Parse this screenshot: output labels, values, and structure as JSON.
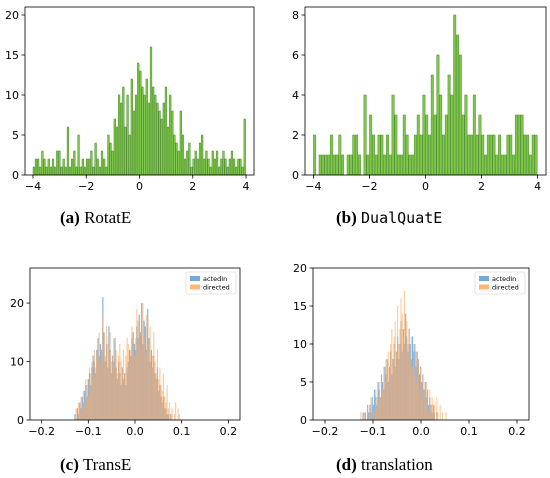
{
  "captions": [
    {
      "label": "(a)",
      "text": "RotatE",
      "mono": false
    },
    {
      "label": "(b)",
      "text": "DualQuatE",
      "mono": true
    },
    {
      "label": "(c)",
      "text": "TransE",
      "mono": false
    },
    {
      "label": "(d)",
      "text": "translation",
      "mono": false
    }
  ],
  "colors": {
    "green": "#7fc64c",
    "green_edge": "#4f8f2e",
    "blue": "#5b9bd5",
    "orange": "#ffa95e"
  },
  "chart_data": [
    {
      "type": "bar",
      "xlim": [
        -4.3,
        4.3
      ],
      "ylim": [
        0,
        21
      ],
      "xticks": [
        -4,
        -2,
        0,
        2,
        4
      ],
      "xtick_labels": [
        "−4",
        "−2",
        "0",
        "2",
        "4"
      ],
      "yticks": [
        0,
        5,
        10,
        15,
        20
      ],
      "ytick_labels": [
        "0",
        "5",
        "10",
        "15",
        "20"
      ],
      "bin_start": -4,
      "bin_width": 0.08,
      "series": [
        {
          "color_key": "green",
          "values": [
            1,
            2,
            2,
            1,
            3,
            2,
            1,
            2,
            1,
            2,
            1,
            3,
            3,
            1,
            2,
            1,
            6,
            1,
            2,
            3,
            1,
            5,
            1,
            2,
            1,
            2,
            2,
            3,
            1,
            4,
            2,
            1,
            3,
            2,
            1,
            5,
            4,
            3,
            7,
            6,
            10,
            9,
            11,
            6,
            10,
            5,
            12,
            8,
            10,
            14,
            13,
            11,
            10,
            12,
            9,
            16,
            11,
            10,
            9,
            8,
            7,
            9,
            11,
            6,
            10,
            8,
            5,
            4,
            3,
            8,
            5,
            2,
            3,
            4,
            1,
            2,
            3,
            2,
            4,
            5,
            2,
            3,
            2,
            1,
            3,
            2,
            3,
            1,
            2,
            3,
            2,
            1,
            2,
            3,
            2,
            1,
            2,
            2,
            1,
            7
          ]
        }
      ]
    },
    {
      "type": "bar",
      "xlim": [
        -4.3,
        4.3
      ],
      "ylim": [
        0,
        8.4
      ],
      "xticks": [
        -4,
        -2,
        0,
        2,
        4
      ],
      "xtick_labels": [
        "−4",
        "−2",
        "0",
        "2",
        "4"
      ],
      "yticks": [
        0,
        2,
        4,
        6,
        8
      ],
      "ytick_labels": [
        "0",
        "2",
        "4",
        "6",
        "8"
      ],
      "bin_start": -4,
      "bin_width": 0.1,
      "series": [
        {
          "color_key": "green",
          "values": [
            2,
            0,
            1,
            1,
            1,
            1,
            2,
            1,
            1,
            2,
            1,
            0,
            1,
            1,
            2,
            2,
            1,
            0,
            4,
            1,
            3,
            2,
            1,
            2,
            2,
            1,
            2,
            1,
            4,
            3,
            1,
            1,
            3,
            2,
            1,
            1,
            2,
            3,
            2,
            4,
            3,
            2,
            5,
            3,
            6,
            4,
            2,
            3,
            5,
            4,
            8,
            7,
            6,
            3,
            4,
            2,
            2,
            4,
            2,
            3,
            2,
            1,
            2,
            2,
            2,
            1,
            2,
            1,
            1,
            2,
            2,
            1,
            3,
            3,
            3,
            2,
            2,
            1,
            2,
            2
          ]
        }
      ]
    },
    {
      "type": "bar",
      "xlim": [
        -0.225,
        0.225
      ],
      "ylim": [
        0,
        26
      ],
      "xticks": [
        -0.2,
        -0.1,
        0.0,
        0.1,
        0.2
      ],
      "xtick_labels": [
        "−0.2",
        "−0.1",
        "0.0",
        "0.1",
        "0.2"
      ],
      "yticks": [
        0,
        10,
        20
      ],
      "ytick_labels": [
        "0",
        "10",
        "20"
      ],
      "bin_start": -0.13,
      "bin_width": 0.0026,
      "legend_position": "top-right",
      "series": [
        {
          "name": "actedIn",
          "color_key": "blue",
          "values": [
            1,
            0,
            2,
            1,
            3,
            2,
            4,
            3,
            5,
            6,
            4,
            7,
            8,
            6,
            9,
            11,
            10,
            8,
            12,
            14,
            11,
            13,
            12,
            21,
            15,
            10,
            13,
            9,
            16,
            12,
            8,
            11,
            10,
            14,
            9,
            7,
            10,
            8,
            6,
            9,
            7,
            8,
            6,
            9,
            10,
            12,
            11,
            14,
            15,
            13,
            12,
            16,
            14,
            18,
            15,
            20,
            13,
            17,
            16,
            12,
            19,
            14,
            10,
            12,
            9,
            11,
            8,
            7,
            9,
            5,
            6,
            4,
            3,
            4,
            2,
            2,
            1,
            1,
            0,
            1,
            0,
            0,
            0,
            0,
            0,
            0,
            0,
            0,
            0,
            0,
            0,
            0,
            0,
            0,
            0,
            0,
            0,
            0,
            0,
            0
          ]
        },
        {
          "name": "directed",
          "color_key": "orange",
          "values": [
            0,
            2,
            0,
            3,
            1,
            4,
            2,
            5,
            3,
            7,
            6,
            4,
            9,
            8,
            10,
            7,
            12,
            9,
            11,
            13,
            15,
            10,
            12,
            18,
            14,
            11,
            16,
            13,
            12,
            15,
            10,
            11,
            14,
            9,
            12,
            8,
            11,
            13,
            10,
            9,
            12,
            8,
            11,
            14,
            13,
            10,
            12,
            16,
            15,
            11,
            14,
            19,
            17,
            13,
            15,
            12,
            20,
            14,
            11,
            18,
            13,
            12,
            16,
            9,
            11,
            15,
            10,
            8,
            12,
            7,
            9,
            6,
            5,
            8,
            4,
            3,
            6,
            2,
            3,
            1,
            2,
            0,
            1,
            3,
            0,
            2,
            1,
            0,
            0,
            0,
            0,
            0,
            0,
            0,
            0,
            0,
            0,
            0,
            0,
            0
          ]
        }
      ]
    },
    {
      "type": "bar",
      "xlim": [
        -0.225,
        0.225
      ],
      "ylim": [
        0,
        20
      ],
      "xticks": [
        -0.2,
        -0.1,
        0.0,
        0.1,
        0.2
      ],
      "xtick_labels": [
        "−0.2",
        "−0.1",
        "0.0",
        "0.1",
        "0.2"
      ],
      "yticks": [
        0,
        5,
        10,
        15,
        20
      ],
      "ytick_labels": [
        "0",
        "5",
        "10",
        "15",
        "20"
      ],
      "bin_start": -0.17,
      "bin_width": 0.0024,
      "legend_position": "top-right",
      "series": [
        {
          "name": "actedIn",
          "color_key": "blue",
          "values": [
            0,
            0,
            0,
            0,
            0,
            0,
            0,
            0,
            0,
            0,
            0,
            0,
            0,
            0,
            0,
            0,
            0,
            0,
            0,
            0,
            1,
            0,
            1,
            0,
            2,
            1,
            2,
            1,
            3,
            2,
            4,
            3,
            2,
            5,
            4,
            3,
            6,
            5,
            4,
            7,
            6,
            8,
            5,
            7,
            9,
            6,
            8,
            10,
            7,
            9,
            11,
            8,
            10,
            13,
            9,
            12,
            10,
            14,
            11,
            9,
            12,
            10,
            8,
            11,
            9,
            10,
            7,
            9,
            8,
            6,
            7,
            5,
            6,
            4,
            5,
            3,
            4,
            2,
            3,
            2,
            1,
            2,
            1,
            0,
            1,
            0,
            0,
            0,
            0,
            0,
            0,
            0,
            0,
            0,
            0,
            0,
            0,
            0,
            0,
            0,
            0,
            0,
            0,
            0,
            0,
            0,
            0,
            0,
            0,
            0,
            0,
            0,
            0,
            0,
            0,
            0,
            0,
            0,
            0,
            0,
            0,
            0,
            0,
            0,
            0,
            0,
            0,
            0,
            0,
            0,
            0,
            0,
            0,
            0,
            0,
            0,
            0,
            0,
            0,
            0,
            0
          ]
        },
        {
          "name": "directed",
          "color_key": "orange",
          "values": [
            0,
            0,
            0,
            0,
            0,
            0,
            0,
            0,
            0,
            0,
            0,
            0,
            0,
            0,
            0,
            0,
            0,
            0,
            1,
            0,
            0,
            1,
            0,
            0,
            2,
            0,
            1,
            3,
            0,
            2,
            1,
            4,
            3,
            2,
            5,
            3,
            6,
            4,
            7,
            5,
            8,
            6,
            9,
            7,
            10,
            12,
            8,
            11,
            13,
            9,
            15,
            10,
            12,
            16,
            14,
            11,
            17,
            9,
            13,
            10,
            12,
            8,
            11,
            7,
            10,
            6,
            9,
            5,
            8,
            4,
            7,
            3,
            6,
            4,
            2,
            5,
            3,
            1,
            4,
            2,
            3,
            1,
            2,
            0,
            3,
            1,
            0,
            2,
            0,
            1,
            0,
            0,
            1,
            0,
            0,
            0,
            0,
            0,
            0,
            0,
            0,
            0,
            0,
            0,
            0,
            0,
            0,
            0,
            0,
            0,
            0,
            0,
            0,
            0,
            0,
            0,
            0,
            0,
            0,
            0,
            0,
            0,
            0,
            0,
            0,
            0,
            0,
            0,
            0,
            0,
            0,
            0,
            0,
            0,
            0,
            0,
            0,
            0,
            0,
            0,
            0
          ]
        }
      ]
    }
  ]
}
